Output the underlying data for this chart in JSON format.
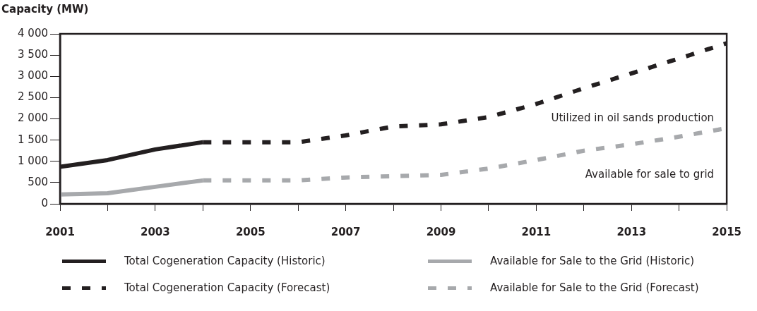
{
  "chart_data": {
    "type": "line",
    "ylabel": "Capacity (MW)",
    "xlim": [
      2001,
      2015
    ],
    "xticks": [
      2001,
      {
        "value": 2002,
        "label": null
      },
      2003,
      {
        "value": 2004,
        "label": null
      },
      2005,
      {
        "value": 2006,
        "label": null
      },
      2007,
      {
        "value": 2008,
        "label": null
      },
      2009,
      {
        "value": 2010,
        "label": null
      },
      2011,
      {
        "value": 2012,
        "label": null
      },
      2013,
      {
        "value": 2014,
        "label": null
      },
      2015
    ],
    "ylim": [
      0,
      4000
    ],
    "yticks": [
      {
        "value": 0,
        "label": "0"
      },
      {
        "value": 500,
        "label": "500"
      },
      {
        "value": 1000,
        "label": "1 000"
      },
      {
        "value": 1500,
        "label": "1 500"
      },
      {
        "value": 2000,
        "label": "2 000"
      },
      {
        "value": 2500,
        "label": "2 500"
      },
      {
        "value": 3000,
        "label": "3 000"
      },
      {
        "value": 3500,
        "label": "3 500"
      },
      {
        "value": 4000,
        "label": "4 000"
      }
    ],
    "grid": false,
    "legend": "bottom",
    "marker": "none",
    "series": [
      {
        "name": "Total Cogeneration Capacity (Historic)",
        "color": "#231f20",
        "line_style": "solid",
        "x": [
          2001,
          2002,
          2003,
          2004
        ],
        "values": [
          870,
          1030,
          1280,
          1450
        ]
      },
      {
        "name": "Available for Sale to the Grid (Historic)",
        "color": "#a7a9ac",
        "line_style": "solid",
        "x": [
          2001,
          2002,
          2003,
          2004
        ],
        "values": [
          220,
          250,
          400,
          550
        ]
      },
      {
        "name": "Total Cogeneration Capacity (Forecast)",
        "color": "#231f20",
        "line_style": "dashed",
        "x": [
          2004,
          2005,
          2006,
          2007,
          2008,
          2009,
          2010,
          2011,
          2012,
          2013,
          2014,
          2015
        ],
        "values": [
          1450,
          1450,
          1450,
          1610,
          1820,
          1870,
          2040,
          2350,
          2720,
          3070,
          3420,
          3780
        ]
      },
      {
        "name": "Available for Sale to the Grid (Forecast)",
        "color": "#a7a9ac",
        "line_style": "dashed",
        "x": [
          2004,
          2005,
          2006,
          2007,
          2008,
          2009,
          2010,
          2011,
          2012,
          2013,
          2014,
          2015
        ],
        "values": [
          550,
          550,
          550,
          620,
          650,
          680,
          830,
          1030,
          1250,
          1400,
          1580,
          1780
        ]
      }
    ],
    "annotations": [
      "Utilized in oil sands production",
      "Available for sale to grid"
    ]
  }
}
